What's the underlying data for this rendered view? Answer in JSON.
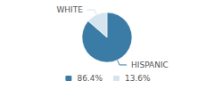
{
  "chart_data": {
    "type": "pie",
    "categories": [
      "HISPANIC",
      "WHITE"
    ],
    "values": [
      86.4,
      13.6
    ],
    "value_labels": [
      "86.4%",
      "13.6%"
    ],
    "colors": [
      "#3a7ca5",
      "#d6e4ee"
    ],
    "legend": "bottom"
  }
}
